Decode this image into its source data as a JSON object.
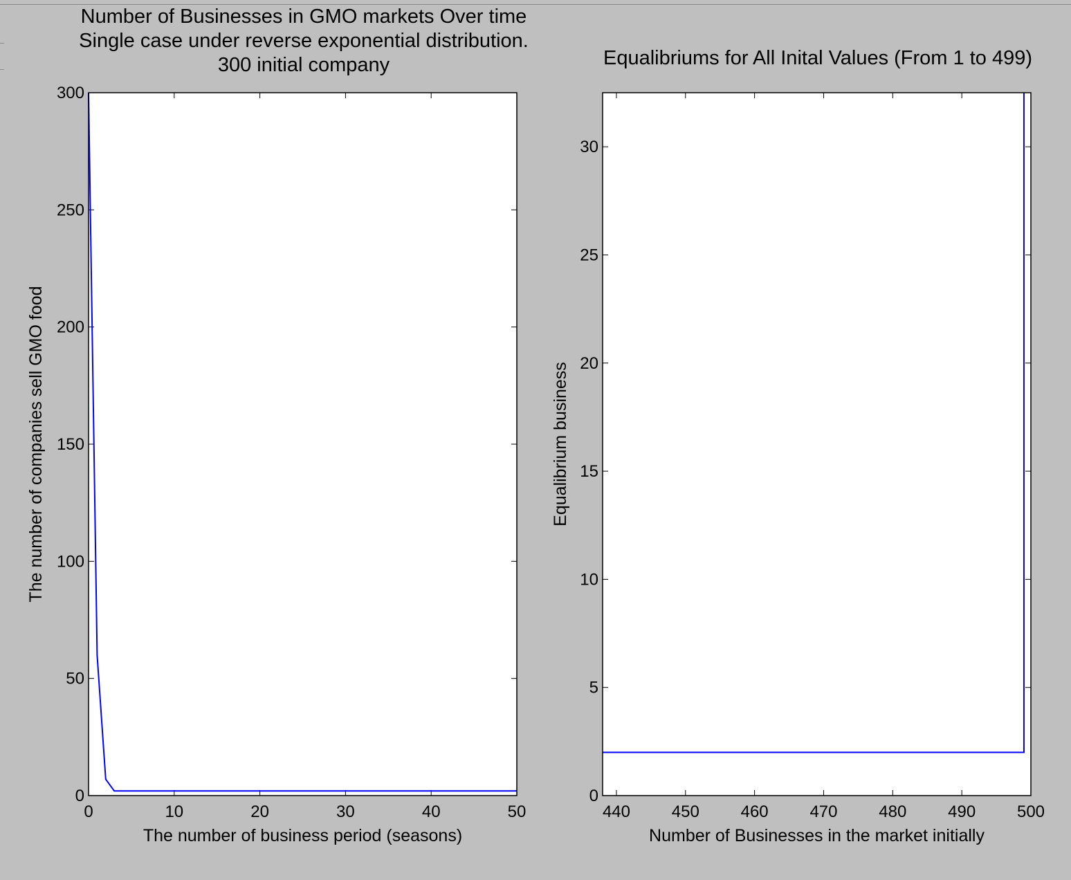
{
  "chart_data": [
    {
      "type": "line",
      "title_lines": [
        "Number of Businesses in GMO markets Over time",
        "Single case under reverse exponential distribution.",
        "300 initial company"
      ],
      "xlabel": "The number of business period (seasons)",
      "ylabel": "The number of companies sell GMO food",
      "xlim": [
        0,
        50
      ],
      "ylim": [
        0,
        300
      ],
      "xticks": [
        0,
        10,
        20,
        30,
        40,
        50
      ],
      "yticks": [
        0,
        50,
        100,
        150,
        200,
        250,
        300
      ],
      "line_color": "#0000ff",
      "series": [
        {
          "x": [
            0,
            1,
            2,
            3,
            4,
            5,
            10,
            20,
            30,
            40,
            50
          ],
          "y": [
            300,
            60,
            7,
            2,
            2,
            2,
            2,
            2,
            2,
            2,
            2
          ]
        }
      ]
    },
    {
      "type": "line",
      "title_lines": [
        "Equalibriums for All Inital Values (From 1 to 499)"
      ],
      "xlabel": "Number of Businesses in the market initially",
      "ylabel": "Equalibrium business",
      "xlim": [
        438,
        500
      ],
      "ylim": [
        0,
        32.5
      ],
      "xticks": [
        440,
        450,
        460,
        470,
        480,
        490,
        500
      ],
      "yticks": [
        0,
        5,
        10,
        15,
        20,
        25,
        30
      ],
      "line_color": "#0000ff",
      "series": [
        {
          "x": [
            438,
            499,
            499
          ],
          "y": [
            2,
            2,
            32.5
          ]
        }
      ]
    }
  ]
}
